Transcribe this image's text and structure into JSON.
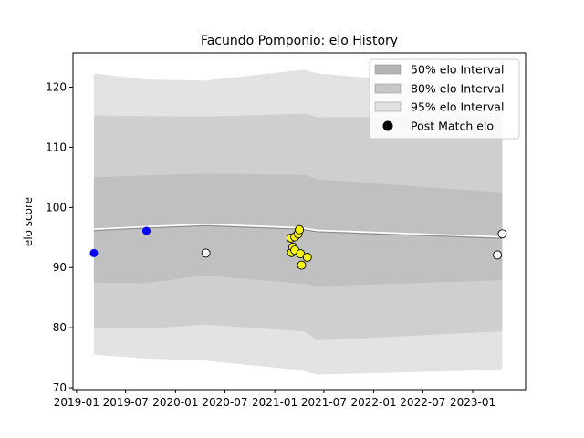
{
  "chart_data": {
    "type": "line",
    "title": "Facundo Pomponio: elo History",
    "xlabel": "",
    "ylabel": "elo score",
    "xlim": [
      "2018-12-19",
      "2023-07-15"
    ],
    "ylim": [
      69.7,
      125.7
    ],
    "x_tick_labels": [
      "2019-01",
      "2019-07",
      "2020-01",
      "2020-07",
      "2021-01",
      "2021-07",
      "2022-01",
      "2022-07",
      "2023-01"
    ],
    "x_ticks": [
      "2019-01-01",
      "2019-07-01",
      "2020-01-01",
      "2020-07-01",
      "2021-01-01",
      "2021-07-01",
      "2022-01-01",
      "2022-07-01",
      "2023-01-01"
    ],
    "y_ticks": [
      70,
      80,
      90,
      100,
      110,
      120
    ],
    "grid": false,
    "legend_position": "top-right",
    "legend": [
      {
        "label": "50% elo Interval",
        "kind": "band",
        "color": "#b3b3b3"
      },
      {
        "label": "80% elo Interval",
        "kind": "band",
        "color": "#c6c6c6"
      },
      {
        "label": "95% elo Interval",
        "kind": "band",
        "color": "#e1e1e1"
      },
      {
        "label": "Post Match elo",
        "kind": "marker",
        "color": "#000000"
      }
    ],
    "dates": [
      "2019-03-06",
      "2019-09-10",
      "2020-04-22",
      "2021-04-13",
      "2021-04-24",
      "2021-06-06",
      "2023-04-20"
    ],
    "mean_elo": [
      96.4,
      96.8,
      97.2,
      96.6,
      96.5,
      96.2,
      95.1
    ],
    "interval_95": {
      "lower": [
        75.5,
        74.9,
        74.5,
        72.9,
        72.7,
        72.2,
        73.0
      ],
      "upper": [
        122.3,
        121.3,
        121.1,
        122.9,
        122.9,
        122.3,
        119.7
      ]
    },
    "interval_80": {
      "lower": [
        79.8,
        79.8,
        80.5,
        79.4,
        79.3,
        77.9,
        79.4
      ],
      "upper": [
        115.3,
        115.2,
        115.1,
        115.6,
        115.6,
        115.0,
        115.2
      ]
    },
    "interval_50": {
      "lower": [
        87.5,
        87.4,
        88.7,
        87.3,
        87.3,
        86.9,
        87.9
      ],
      "upper": [
        105.0,
        105.3,
        105.6,
        105.4,
        105.4,
        104.7,
        102.5
      ]
    },
    "series": [
      {
        "color": "#0000ff",
        "points": [
          {
            "x": "2019-03-06",
            "y": 92.4
          },
          {
            "x": "2019-09-16",
            "y": 96.1
          }
        ]
      },
      {
        "color": "#ffffff",
        "points": [
          {
            "x": "2020-04-22",
            "y": 92.4
          },
          {
            "x": "2023-04-02",
            "y": 92.1
          },
          {
            "x": "2023-04-20",
            "y": 95.6
          }
        ]
      },
      {
        "color": "#ffff00",
        "points": [
          {
            "x": "2021-03-02",
            "y": 94.9
          },
          {
            "x": "2021-03-04",
            "y": 92.5
          },
          {
            "x": "2021-03-09",
            "y": 93.4
          },
          {
            "x": "2021-03-16",
            "y": 92.9
          },
          {
            "x": "2021-03-16",
            "y": 95.1
          },
          {
            "x": "2021-03-28",
            "y": 95.6
          },
          {
            "x": "2021-04-02",
            "y": 96.3
          },
          {
            "x": "2021-04-06",
            "y": 92.3
          },
          {
            "x": "2021-04-10",
            "y": 90.4
          },
          {
            "x": "2021-05-01",
            "y": 91.7
          }
        ]
      }
    ]
  }
}
